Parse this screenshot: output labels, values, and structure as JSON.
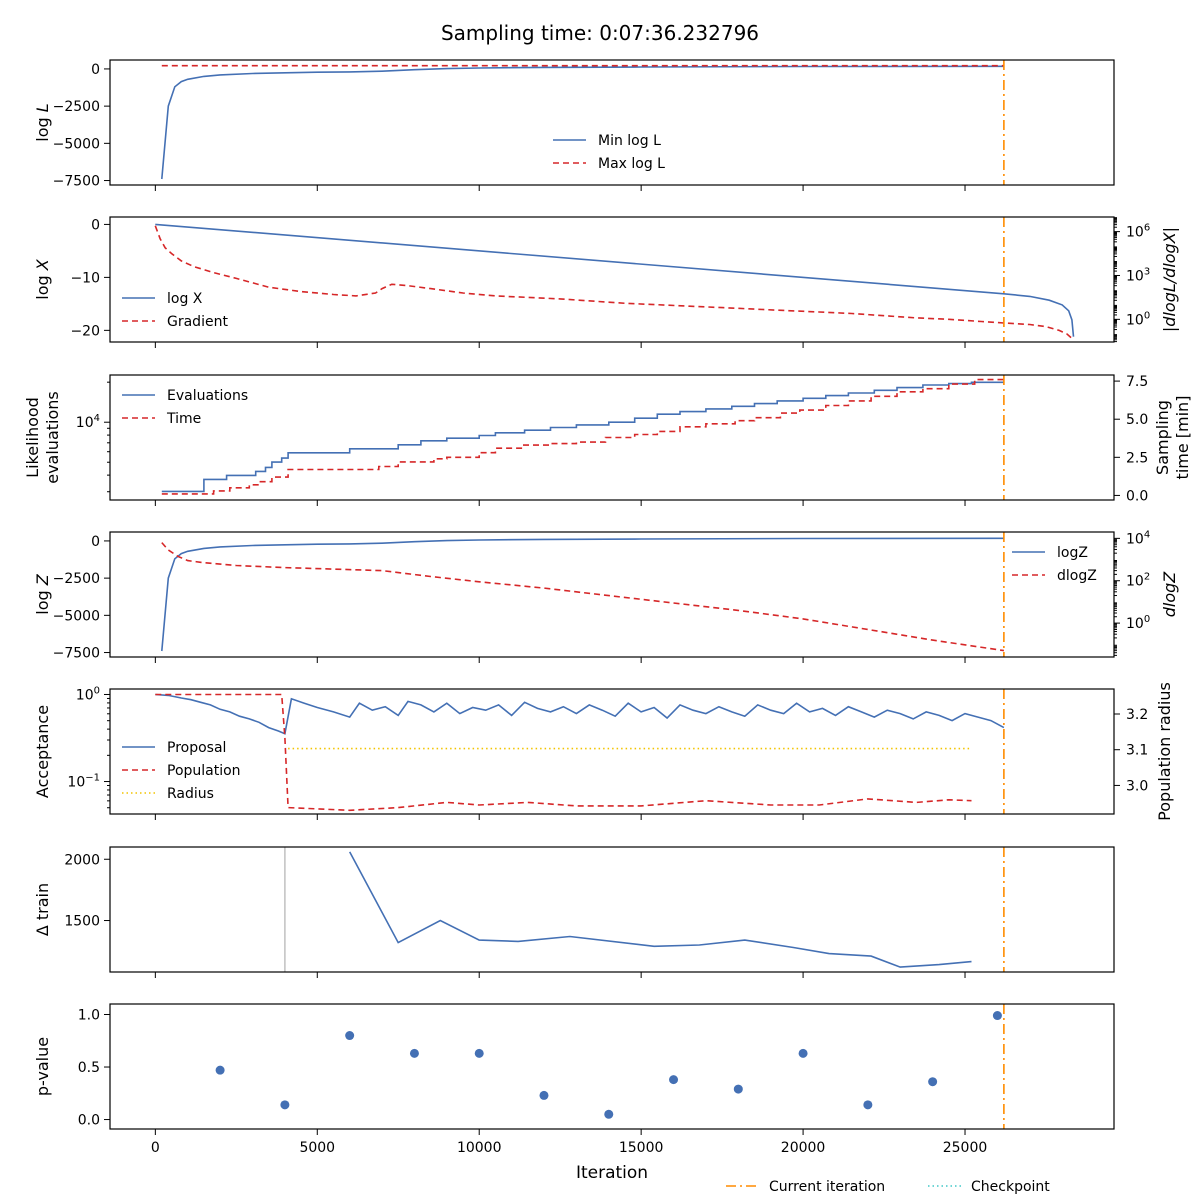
{
  "title": "Sampling time: 0:07:36.232796",
  "xlabel": "Iteration",
  "x_ticks": [
    0,
    5000,
    10000,
    15000,
    20000,
    25000
  ],
  "x_range": [
    -1400,
    29600
  ],
  "current_iteration": 26200,
  "colors": {
    "blue": "#4470b4",
    "red": "#d62728",
    "orange": "#ff8c00",
    "cyan": "#40c8c8",
    "gold": "#f2c400",
    "gray": "#c0c0c0"
  },
  "footer_legend": [
    {
      "label": "Current iteration",
      "style": "dashdot",
      "color": "#ff8c00"
    },
    {
      "label": "Checkpoint",
      "style": "dotted",
      "color": "#40c8c8"
    }
  ],
  "chart_data": [
    {
      "id": "logl",
      "type": "line",
      "ylabel_prefix": "log",
      "ylabel_var": "L",
      "ylim": [
        -7800,
        600
      ],
      "yticks": [
        0,
        -2500,
        -5000,
        -7500
      ],
      "legend": [
        "Min log L",
        "Max log L"
      ],
      "series": [
        {
          "name": "Min log L",
          "style": "solid",
          "color": "#4470b4",
          "x": [
            200,
            400,
            600,
            800,
            1000,
            1500,
            2000,
            3000,
            4000,
            5000,
            6000,
            7000,
            8000,
            9000,
            10000,
            12000,
            15000,
            20000,
            26200
          ],
          "y": [
            -7400,
            -2500,
            -1200,
            -850,
            -700,
            -500,
            -400,
            -310,
            -260,
            -220,
            -200,
            -150,
            -50,
            20,
            60,
            100,
            130,
            160,
            180
          ]
        },
        {
          "name": "Max log L",
          "style": "dashed",
          "color": "#d62728",
          "x": [
            200,
            26200
          ],
          "y": [
            220,
            220
          ]
        }
      ]
    },
    {
      "id": "logx",
      "type": "line",
      "ylabel_prefix": "log",
      "ylabel_var": "X",
      "ylim": [
        -22.2,
        1.4
      ],
      "yticks": [
        0,
        -10,
        -20
      ],
      "right_axis": {
        "label": "|dlogL/dlogX|",
        "log": true,
        "exp_range": [
          -1.55,
          7.0
        ],
        "ticks": [
          6,
          3,
          0
        ]
      },
      "legend": [
        "log X",
        "Gradient"
      ],
      "series": [
        {
          "name": "log X",
          "style": "solid",
          "color": "#4470b4",
          "x": [
            0,
            26200,
            27000,
            27600,
            28000,
            28200,
            28300,
            28350
          ],
          "y": [
            0,
            -13.1,
            -13.6,
            -14.3,
            -15.2,
            -16.3,
            -18.0,
            -21.2
          ]
        },
        {
          "name": "Gradient",
          "style": "dashed",
          "color": "#d62728",
          "axis": "right",
          "x": [
            0,
            150,
            300,
            500,
            800,
            1200,
            1800,
            2500,
            3500,
            4500,
            5500,
            6200,
            6800,
            7000,
            7300,
            7800,
            8500,
            9500,
            10500,
            11500,
            12500,
            13500,
            14500,
            15500,
            16500,
            17500,
            18500,
            19500,
            20500,
            21500,
            22500,
            23500,
            24500,
            25500,
            26200,
            27000,
            27500,
            27900,
            28150,
            28350
          ],
          "y": [
            6.4,
            5.5,
            4.9,
            4.5,
            4.0,
            3.6,
            3.2,
            2.8,
            2.2,
            1.9,
            1.7,
            1.6,
            1.8,
            2.1,
            2.4,
            2.3,
            2.1,
            1.8,
            1.6,
            1.5,
            1.4,
            1.25,
            1.1,
            1.0,
            0.9,
            0.8,
            0.7,
            0.6,
            0.5,
            0.4,
            0.25,
            0.1,
            0.0,
            -0.15,
            -0.25,
            -0.35,
            -0.5,
            -0.75,
            -1.0,
            -1.4
          ]
        }
      ]
    },
    {
      "id": "evals",
      "type": "line",
      "ylabel_lines": [
        "Likelihood",
        "evaluations"
      ],
      "ylim_log": [
        3.43,
        4.34
      ],
      "ytick_labels": [
        {
          "exp": 4,
          "label": "10",
          "sup": "4"
        }
      ],
      "right_axis": {
        "label_lines": [
          "Sampling",
          "time [min]"
        ],
        "range": [
          -0.3,
          7.9
        ],
        "ticks": [
          0.0,
          2.5,
          5.0,
          7.5
        ],
        "tick_labels": [
          "0.0",
          "2.5",
          "5.0",
          "7.5"
        ]
      },
      "legend": [
        "Evaluations",
        "Time"
      ],
      "series": [
        {
          "name": "Evaluations",
          "style": "step",
          "color": "#4470b4",
          "x": [
            200,
            1500,
            1900,
            2200,
            2800,
            3100,
            3400,
            3600,
            3900,
            4100,
            6000,
            6900,
            7500,
            8200,
            9000,
            10000,
            10500,
            11400,
            12200,
            13000,
            14000,
            14800,
            15500,
            16200,
            17000,
            17800,
            18500,
            19200,
            20000,
            20700,
            21400,
            22200,
            22900,
            23700,
            24500,
            25200,
            26200
          ],
          "y": [
            3.48,
            3.57,
            3.57,
            3.6,
            3.6,
            3.63,
            3.66,
            3.7,
            3.73,
            3.77,
            3.8,
            3.8,
            3.83,
            3.86,
            3.88,
            3.9,
            3.92,
            3.94,
            3.96,
            3.98,
            4.0,
            4.03,
            4.06,
            4.08,
            4.1,
            4.12,
            4.14,
            4.16,
            4.18,
            4.2,
            4.22,
            4.24,
            4.26,
            4.28,
            4.29,
            4.3,
            4.3
          ]
        },
        {
          "name": "Time",
          "style": "step-dashed",
          "color": "#d62728",
          "axis": "right",
          "x": [
            200,
            1500,
            1800,
            2300,
            2900,
            3200,
            3600,
            4100,
            6000,
            6900,
            7500,
            8600,
            9000,
            10000,
            10500,
            11300,
            12200,
            13000,
            13900,
            14800,
            15500,
            16200,
            17000,
            17900,
            18500,
            19300,
            19900,
            20700,
            21400,
            22100,
            22900,
            23700,
            24500,
            25300,
            26200
          ],
          "y": [
            0.1,
            0.1,
            0.3,
            0.5,
            0.7,
            0.9,
            1.2,
            1.7,
            1.7,
            1.9,
            2.2,
            2.4,
            2.5,
            2.8,
            3.1,
            3.3,
            3.4,
            3.5,
            3.8,
            4.0,
            4.2,
            4.5,
            4.7,
            4.9,
            5.1,
            5.4,
            5.6,
            5.9,
            6.2,
            6.5,
            6.8,
            7.0,
            7.3,
            7.6,
            7.6
          ]
        }
      ]
    },
    {
      "id": "logz",
      "type": "line",
      "ylabel_prefix": "log",
      "ylabel_var": "Z",
      "ylim": [
        -7800,
        600
      ],
      "yticks": [
        0,
        -2500,
        -5000,
        -7500
      ],
      "right_axis": {
        "label": "dlogZ",
        "log": true,
        "exp_range": [
          -1.6,
          4.3
        ],
        "ticks": [
          4,
          2,
          0
        ]
      },
      "legend": [
        "logZ",
        "dlogZ"
      ],
      "series": [
        {
          "name": "logZ",
          "style": "solid",
          "color": "#4470b4",
          "x": [
            200,
            400,
            600,
            800,
            1000,
            1500,
            2000,
            3000,
            4000,
            5000,
            6000,
            7000,
            8000,
            9000,
            10000,
            12000,
            15000,
            20000,
            26200
          ],
          "y": [
            -7400,
            -2500,
            -1200,
            -850,
            -700,
            -500,
            -400,
            -310,
            -260,
            -220,
            -200,
            -150,
            -50,
            20,
            60,
            100,
            130,
            160,
            180
          ]
        },
        {
          "name": "dlogZ",
          "style": "dashed",
          "color": "#d62728",
          "axis": "right",
          "x": [
            200,
            400,
            700,
            1000,
            1500,
            2500,
            4000,
            5500,
            7000,
            8500,
            10000,
            12000,
            14000,
            16000,
            18000,
            20000,
            22000,
            24000,
            26200
          ],
          "y": [
            3.8,
            3.45,
            3.15,
            2.95,
            2.85,
            2.72,
            2.62,
            2.55,
            2.48,
            2.2,
            1.95,
            1.65,
            1.3,
            0.95,
            0.6,
            0.2,
            -0.3,
            -0.8,
            -1.3
          ]
        }
      ]
    },
    {
      "id": "acceptance",
      "type": "line",
      "ylabel": "Acceptance",
      "ylim_log": [
        -1.35,
        0.04
      ],
      "ytick_labels": [
        {
          "exp": 0,
          "label": "10",
          "sup": "0"
        },
        {
          "exp": -1,
          "label": "10",
          "sup": "−1"
        }
      ],
      "right_axis": {
        "label": "Population radius",
        "range": [
          2.92,
          3.27
        ],
        "ticks": [
          3.0,
          3.1,
          3.2
        ],
        "tick_labels": [
          "3.0",
          "3.1",
          "3.2"
        ]
      },
      "legend": [
        "Proposal",
        "Population",
        "Radius"
      ],
      "series": [
        {
          "name": "Proposal",
          "style": "solid",
          "color": "#4470b4",
          "x": [
            0,
            400,
            800,
            1100,
            1400,
            1700,
            2000,
            2300,
            2600,
            2900,
            3200,
            3500,
            3800,
            4000,
            4200,
            4600,
            5000,
            5500,
            6000,
            6300,
            6700,
            7100,
            7500,
            7800,
            8200,
            8600,
            9000,
            9400,
            9800,
            10200,
            10600,
            11000,
            11400,
            11800,
            12200,
            12600,
            13000,
            13400,
            13800,
            14200,
            14600,
            15000,
            15400,
            15800,
            16200,
            16600,
            17000,
            17400,
            17800,
            18200,
            18600,
            19000,
            19400,
            19800,
            20200,
            20600,
            21000,
            21400,
            21800,
            22200,
            22600,
            23000,
            23400,
            23800,
            24200,
            24600,
            25000,
            25400,
            25800,
            26200
          ],
          "y": [
            0.0,
            -0.01,
            -0.04,
            -0.06,
            -0.09,
            -0.12,
            -0.17,
            -0.2,
            -0.25,
            -0.28,
            -0.32,
            -0.38,
            -0.42,
            -0.45,
            -0.05,
            -0.1,
            -0.15,
            -0.2,
            -0.26,
            -0.1,
            -0.18,
            -0.14,
            -0.24,
            -0.08,
            -0.12,
            -0.2,
            -0.1,
            -0.22,
            -0.15,
            -0.18,
            -0.12,
            -0.24,
            -0.09,
            -0.16,
            -0.2,
            -0.14,
            -0.22,
            -0.12,
            -0.18,
            -0.25,
            -0.1,
            -0.2,
            -0.15,
            -0.27,
            -0.12,
            -0.18,
            -0.22,
            -0.14,
            -0.2,
            -0.25,
            -0.12,
            -0.18,
            -0.22,
            -0.1,
            -0.2,
            -0.16,
            -0.24,
            -0.14,
            -0.2,
            -0.26,
            -0.18,
            -0.22,
            -0.28,
            -0.2,
            -0.24,
            -0.3,
            -0.22,
            -0.26,
            -0.3,
            -0.38
          ]
        },
        {
          "name": "Population",
          "style": "dashed",
          "color": "#d62728",
          "x": [
            0,
            3900,
            4000,
            4100,
            6000,
            7500,
            9000,
            10000,
            11500,
            13000,
            15000,
            17000,
            19000,
            20500,
            22000,
            23500,
            24500,
            25200
          ],
          "y": [
            0.0,
            0.0,
            -0.5,
            -1.3,
            -1.33,
            -1.3,
            -1.24,
            -1.27,
            -1.24,
            -1.28,
            -1.28,
            -1.22,
            -1.27,
            -1.27,
            -1.2,
            -1.24,
            -1.21,
            -1.22
          ]
        },
        {
          "name": "Radius",
          "style": "dotted",
          "color": "#f2c400",
          "axis": "right",
          "x": [
            4100,
            25200
          ],
          "y": [
            3.103,
            3.103
          ]
        }
      ]
    },
    {
      "id": "delta",
      "type": "line",
      "ylabel": "Δ train",
      "ylim": [
        1080,
        2100
      ],
      "yticks": [
        2000,
        1500
      ],
      "marker_x": 4000,
      "series": [
        {
          "name": "Δ train",
          "style": "solid",
          "color": "#4470b4",
          "x": [
            6000,
            7500,
            8800,
            10000,
            11200,
            12800,
            15400,
            16800,
            18200,
            19700,
            20800,
            22100,
            23000,
            24200,
            25200
          ],
          "y": [
            2060,
            1320,
            1500,
            1340,
            1330,
            1370,
            1290,
            1300,
            1340,
            1280,
            1230,
            1210,
            1120,
            1140,
            1165
          ]
        }
      ]
    },
    {
      "id": "pvalue",
      "type": "scatter",
      "ylabel": "p-value",
      "ylim": [
        -0.09,
        1.1
      ],
      "yticks": [
        0.0,
        0.5,
        1.0
      ],
      "ytick_labels": [
        "0.0",
        "0.5",
        "1.0"
      ],
      "series": [
        {
          "name": "p-value",
          "style": "points",
          "color": "#4470b4",
          "x": [
            2000,
            4000,
            6000,
            8000,
            10000,
            12000,
            14000,
            16000,
            18000,
            20000,
            22000,
            24000,
            26000
          ],
          "y": [
            0.47,
            0.14,
            0.8,
            0.63,
            0.63,
            0.23,
            0.05,
            0.38,
            0.29,
            0.63,
            0.14,
            0.36,
            0.99
          ]
        }
      ]
    }
  ]
}
